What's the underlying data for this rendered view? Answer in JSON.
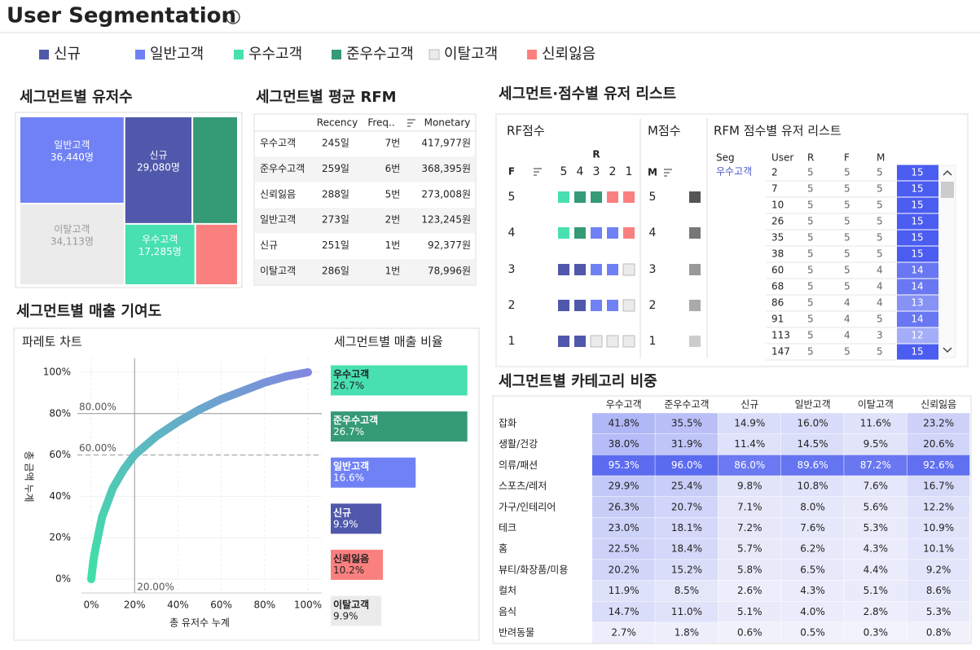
{
  "header": {
    "title": "User Segmentation",
    "info": "i"
  },
  "legend": {
    "items": [
      {
        "name": "신규",
        "color": "#5058ab"
      },
      {
        "name": "일반고객",
        "color": "#7081f5"
      },
      {
        "name": "우수고객",
        "color": "#48e0b0"
      },
      {
        "name": "준우수고객",
        "color": "#359a76"
      },
      {
        "name": "이탈고객",
        "color": "#ebebeb"
      },
      {
        "name": "신뢰잃음",
        "color": "#fa8080"
      }
    ]
  },
  "chart_data": [
    {
      "type": "treemap",
      "title": "세그먼트별 유저수",
      "categories": [
        "일반고객",
        "신규",
        "이탈고객",
        "우수고객",
        null,
        null
      ],
      "values": [
        36440,
        29080,
        34113,
        17285,
        19500,
        10400
      ],
      "value_labels": [
        "36,440명",
        "29,080명",
        "34,113명",
        "17,285명",
        null,
        null
      ],
      "colors": [
        "#7081f5",
        "#5058ab",
        "#ebebeb",
        "#48e0b0",
        "#359a76",
        "#fa8080"
      ]
    },
    {
      "type": "line",
      "title": "파레토 차트",
      "xlabel": "총 유저수 누계",
      "ylabel": "총 금액 누계",
      "x": [
        0,
        1,
        2,
        5,
        10,
        15,
        20,
        30,
        40,
        50,
        60,
        70,
        80,
        90,
        100
      ],
      "values": [
        0,
        9,
        15,
        30,
        44,
        53,
        60,
        69,
        76,
        82,
        87,
        91,
        95,
        98,
        100
      ],
      "gradient": [
        "#3fe0a8",
        "#8088e0"
      ],
      "xlim": [
        0,
        100
      ],
      "ylim": [
        0,
        100
      ],
      "xticks": [
        {
          "value": 0,
          "label": "0%"
        },
        {
          "value": 20,
          "label": "20%"
        },
        {
          "value": 40,
          "label": "40%"
        },
        {
          "value": 60,
          "label": "60%"
        },
        {
          "value": 80,
          "label": "80%"
        },
        {
          "value": 100,
          "label": "100%"
        }
      ],
      "yticks": [
        {
          "value": 0,
          "label": "0%"
        },
        {
          "value": 20,
          "label": "20%"
        },
        {
          "value": 40,
          "label": "40%"
        },
        {
          "value": 60,
          "label": "60%"
        },
        {
          "value": 80,
          "label": "80%"
        },
        {
          "value": 100,
          "label": "100%"
        }
      ],
      "grid": true,
      "ref_lines": [
        {
          "axis": "y",
          "value": 80,
          "label": "80.00%",
          "style": "solid"
        },
        {
          "axis": "y",
          "value": 60,
          "label": "60.00%",
          "style": "dashed"
        },
        {
          "axis": "x",
          "value": 20,
          "label": "20.00%",
          "style": "solid"
        }
      ]
    },
    {
      "type": "hbar",
      "title": "세그먼트별 매출 비율",
      "categories": [
        "우수고객",
        "준우수고객",
        "일반고객",
        "신규",
        "신뢰잃음",
        "이탈고객"
      ],
      "values": [
        26.7,
        26.7,
        16.6,
        9.9,
        10.2,
        9.9
      ],
      "value_labels": [
        "26.7%",
        "26.7%",
        "16.6%",
        "9.9%",
        "10.2%",
        "9.9%"
      ],
      "colors": [
        "#48e0b0",
        "#359a76",
        "#7081f5",
        "#5058ab",
        "#fa8080",
        "#ebebeb"
      ]
    }
  ],
  "contribution": {
    "title": "세그먼트별 매출 기여도"
  },
  "rfm_table": {
    "title": "세그먼트별 평균 RFM",
    "columns": [
      "Recency",
      "Freq..",
      "Monetary"
    ],
    "rows": [
      {
        "segment": "우수고객",
        "cells": [
          "245일",
          "7번",
          "417,977원"
        ]
      },
      {
        "segment": "준우수고객",
        "cells": [
          "259일",
          "6번",
          "368,395원"
        ]
      },
      {
        "segment": "신뢰잃음",
        "cells": [
          "288일",
          "5번",
          "273,008원"
        ]
      },
      {
        "segment": "일반고객",
        "cells": [
          "273일",
          "2번",
          "123,245원"
        ]
      },
      {
        "segment": "신규",
        "cells": [
          "251일",
          "1번",
          "92,377원"
        ]
      },
      {
        "segment": "이탈고객",
        "cells": [
          "286일",
          "1번",
          "78,996원"
        ]
      }
    ]
  },
  "score_list": {
    "title": "세그먼트·점수별 유저 리스트",
    "rf": {
      "title": "RF점수",
      "r_label": "R",
      "f_label": "F",
      "r_scores": [
        5,
        4,
        3,
        2,
        1
      ],
      "f_scores": [
        5,
        4,
        3,
        2,
        1
      ],
      "cells": [
        [
          "#48e0b0",
          "#359a76",
          "#359a76",
          "#fa8080",
          "#fa8080"
        ],
        [
          "#48e0b0",
          "#359a76",
          "#7081f5",
          "#7081f5",
          "#fa8080"
        ],
        [
          "#5058ab",
          "#5058ab",
          "#7081f5",
          "#7081f5",
          "#ebebeb"
        ],
        [
          "#5058ab",
          "#5058ab",
          "#7081f5",
          "#7081f5",
          "#ebebeb"
        ],
        [
          "#5058ab",
          "#5058ab",
          "#ebebeb",
          "#ebebeb",
          "#ebebeb"
        ]
      ]
    },
    "m": {
      "title": "M점수",
      "label": "M",
      "scores": [
        5,
        4,
        3,
        2,
        1
      ],
      "colors": [
        "#555555",
        "#777777",
        "#999999",
        "#aaaaaa",
        "#cccccc"
      ]
    },
    "users": {
      "title": "RFM 점수별 유저 리스트",
      "columns": [
        "Seg",
        "User",
        "R",
        "F",
        "M"
      ],
      "segment": "우수고객",
      "rows": [
        [
          2,
          5,
          5,
          5,
          15
        ],
        [
          7,
          5,
          5,
          5,
          15
        ],
        [
          10,
          5,
          5,
          5,
          15
        ],
        [
          26,
          5,
          5,
          5,
          15
        ],
        [
          35,
          5,
          5,
          5,
          15
        ],
        [
          38,
          5,
          5,
          5,
          15
        ],
        [
          60,
          5,
          5,
          4,
          14
        ],
        [
          68,
          5,
          5,
          4,
          14
        ],
        [
          86,
          5,
          4,
          4,
          13
        ],
        [
          91,
          5,
          4,
          5,
          14
        ],
        [
          113,
          5,
          4,
          3,
          12
        ],
        [
          147,
          5,
          5,
          5,
          15
        ]
      ]
    }
  },
  "category_share": {
    "title": "세그먼트별 카테고리 비중",
    "columns": [
      "우수고객",
      "준우수고객",
      "신규",
      "일반고객",
      "이탈고객",
      "신뢰잃음"
    ],
    "color_low": "#f1f2fb",
    "color_high": "#5565f0",
    "rows": [
      {
        "name": "잡화",
        "values": [
          41.8,
          35.5,
          14.9,
          16.0,
          11.6,
          23.2
        ],
        "value_labels": [
          "41.8%",
          "35.5%",
          "14.9%",
          "16.0%",
          "11.6%",
          "23.2%"
        ]
      },
      {
        "name": "생활/건강",
        "values": [
          38.0,
          31.9,
          11.4,
          14.5,
          9.5,
          20.6
        ],
        "value_labels": [
          "38.0%",
          "31.9%",
          "11.4%",
          "14.5%",
          "9.5%",
          "20.6%"
        ]
      },
      {
        "name": "의류/패션",
        "values": [
          95.3,
          96.0,
          86.0,
          89.6,
          87.2,
          92.6
        ],
        "value_labels": [
          "95.3%",
          "96.0%",
          "86.0%",
          "89.6%",
          "87.2%",
          "92.6%"
        ]
      },
      {
        "name": "스포츠/레저",
        "values": [
          29.9,
          25.4,
          9.8,
          10.8,
          7.6,
          16.7
        ],
        "value_labels": [
          "29.9%",
          "25.4%",
          "9.8%",
          "10.8%",
          "7.6%",
          "16.7%"
        ]
      },
      {
        "name": "가구/인테리어",
        "values": [
          26.3,
          20.7,
          7.1,
          8.0,
          5.6,
          12.2
        ],
        "value_labels": [
          "26.3%",
          "20.7%",
          "7.1%",
          "8.0%",
          "5.6%",
          "12.2%"
        ]
      },
      {
        "name": "테크",
        "values": [
          23.0,
          18.1,
          7.2,
          7.6,
          5.3,
          10.9
        ],
        "value_labels": [
          "23.0%",
          "18.1%",
          "7.2%",
          "7.6%",
          "5.3%",
          "10.9%"
        ]
      },
      {
        "name": "홈",
        "values": [
          22.5,
          18.4,
          5.7,
          6.2,
          4.3,
          10.1
        ],
        "value_labels": [
          "22.5%",
          "18.4%",
          "5.7%",
          "6.2%",
          "4.3%",
          "10.1%"
        ]
      },
      {
        "name": "뷰티/화장품/미용",
        "values": [
          20.2,
          15.2,
          5.8,
          6.5,
          4.4,
          9.2
        ],
        "value_labels": [
          "20.2%",
          "15.2%",
          "5.8%",
          "6.5%",
          "4.4%",
          "9.2%"
        ]
      },
      {
        "name": "컬처",
        "values": [
          11.9,
          8.5,
          2.6,
          4.3,
          5.1,
          8.6
        ],
        "value_labels": [
          "11.9%",
          "8.5%",
          "2.6%",
          "4.3%",
          "5.1%",
          "8.6%"
        ]
      },
      {
        "name": "음식",
        "values": [
          14.7,
          11.0,
          5.1,
          4.0,
          2.8,
          5.3
        ],
        "value_labels": [
          "14.7%",
          "11.0%",
          "5.1%",
          "4.0%",
          "2.8%",
          "5.3%"
        ]
      },
      {
        "name": "반려동물",
        "values": [
          2.7,
          1.8,
          0.6,
          0.5,
          0.3,
          0.8
        ],
        "value_labels": [
          "2.7%",
          "1.8%",
          "0.6%",
          "0.5%",
          "0.3%",
          "0.8%"
        ]
      }
    ]
  }
}
